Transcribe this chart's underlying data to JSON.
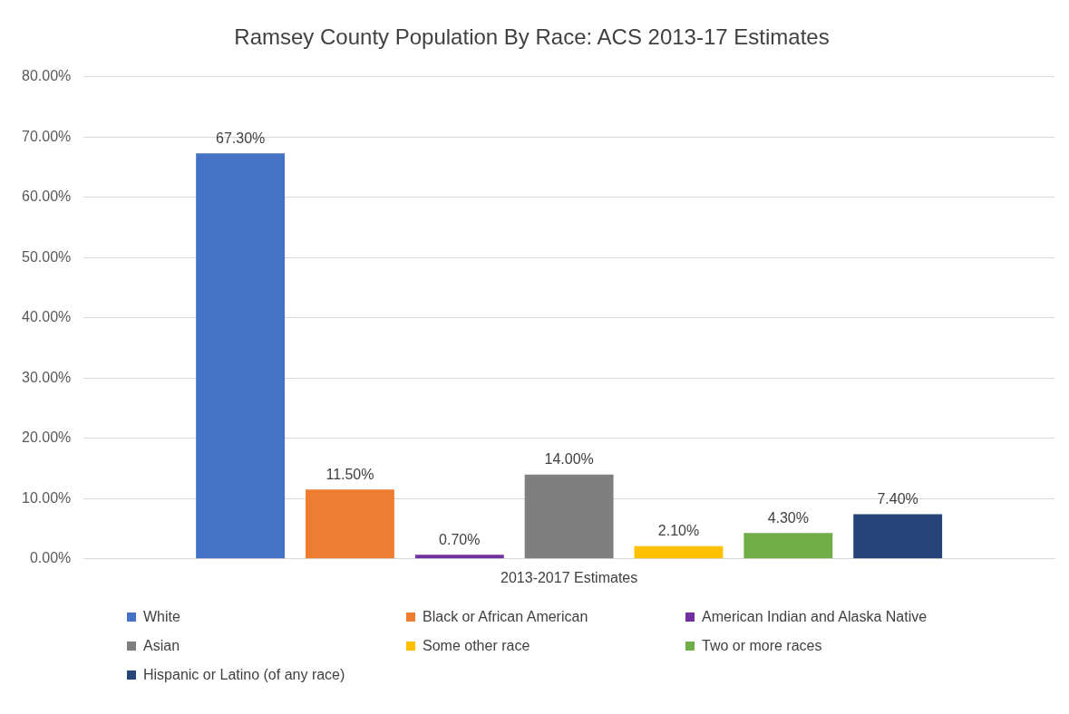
{
  "chart_data": {
    "type": "bar",
    "title": "Ramsey County Population By Race: ACS 2013-17 Estimates",
    "categories": [
      "2013-2017 Estimates"
    ],
    "series": [
      {
        "name": "White",
        "color": "#4472c4",
        "values": [
          67.3
        ],
        "value_labels": [
          "67.30%"
        ]
      },
      {
        "name": "Black or African American",
        "color": "#ed7d31",
        "values": [
          11.5
        ],
        "value_labels": [
          "11.50%"
        ]
      },
      {
        "name": "American Indian and Alaska Native",
        "color": "#7030a0",
        "values": [
          0.7
        ],
        "value_labels": [
          "0.70%"
        ]
      },
      {
        "name": "Asian",
        "color": "#7f7f7f",
        "values": [
          14.0
        ],
        "value_labels": [
          "14.00%"
        ]
      },
      {
        "name": "Some other race",
        "color": "#ffc000",
        "values": [
          2.1
        ],
        "value_labels": [
          "2.10%"
        ]
      },
      {
        "name": "Two or more races",
        "color": "#70ad47",
        "values": [
          4.3
        ],
        "value_labels": [
          "4.30%"
        ]
      },
      {
        "name": "Hispanic or Latino (of any race)",
        "color": "#264478",
        "values": [
          7.4
        ],
        "value_labels": [
          "7.40%"
        ]
      }
    ],
    "ylim": [
      0,
      80
    ],
    "yticks": [
      {
        "value": 0,
        "label": "0.00%"
      },
      {
        "value": 10,
        "label": "10.00%"
      },
      {
        "value": 20,
        "label": "20.00%"
      },
      {
        "value": 30,
        "label": "30.00%"
      },
      {
        "value": 40,
        "label": "40.00%"
      },
      {
        "value": 50,
        "label": "50.00%"
      },
      {
        "value": 60,
        "label": "60.00%"
      },
      {
        "value": 70,
        "label": "70.00%"
      },
      {
        "value": 80,
        "label": "80.00%"
      }
    ],
    "grid": "y",
    "legend": "bottom"
  }
}
